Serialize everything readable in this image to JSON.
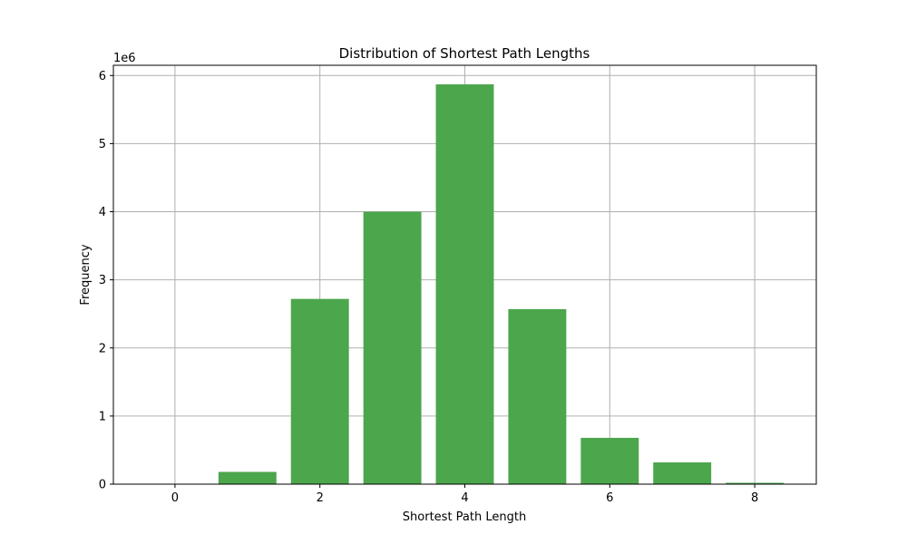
{
  "chart_data": {
    "type": "bar",
    "title": "Distribution of Shortest Path Lengths",
    "xlabel": "Shortest Path Length",
    "ylabel": "Frequency",
    "y_offset_label": "1e6",
    "y_multiplier": 1000000,
    "x": [
      0,
      1,
      2,
      3,
      4,
      5,
      6,
      7,
      8
    ],
    "values": [
      3000,
      180000,
      2720000,
      4000000,
      5870000,
      2570000,
      680000,
      320000,
      20000
    ],
    "bar_width": 0.8,
    "xlim": [
      -0.85,
      8.85
    ],
    "ylim": [
      0,
      6150000
    ],
    "xticks": [
      0,
      2,
      4,
      6,
      8
    ],
    "yticks": [
      0,
      1,
      2,
      3,
      4,
      5,
      6
    ],
    "grid": true,
    "bar_color": "#4ca64c",
    "grid_color": "#b0b0b0"
  }
}
